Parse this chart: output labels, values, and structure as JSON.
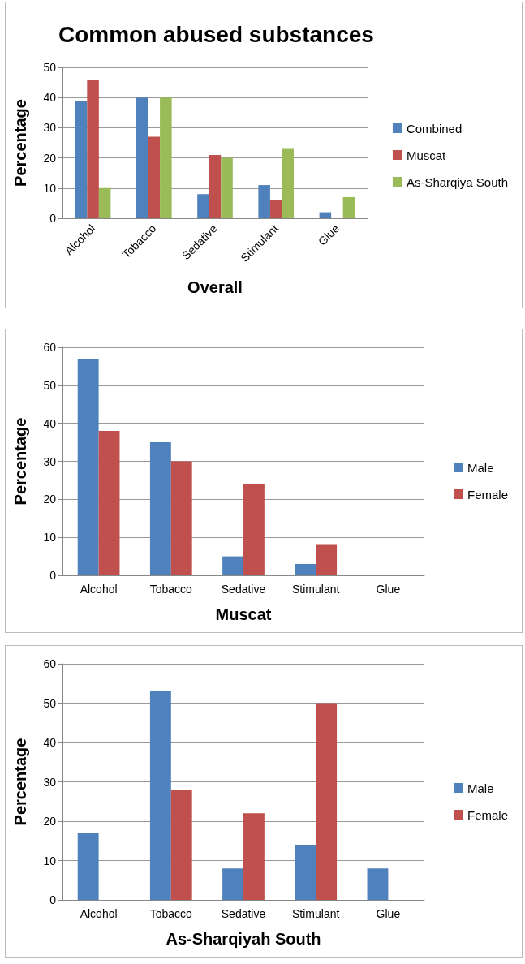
{
  "chart_data": [
    {
      "type": "bar",
      "title": "Common abused substances",
      "xlabel": "Overall",
      "ylabel": "Percentage",
      "categories": [
        "Alcohol",
        "Tobacco",
        "Sedative",
        "Stimulant",
        "Glue"
      ],
      "series": [
        {
          "name": "Combined",
          "color": "#4f81bd",
          "values": [
            39,
            40,
            8,
            11,
            2
          ]
        },
        {
          "name": "Muscat",
          "color": "#c0504d",
          "values": [
            46,
            27,
            21,
            6,
            0
          ]
        },
        {
          "name": "As-Sharqiya South",
          "color": "#9bbb59",
          "values": [
            10,
            40,
            20,
            23,
            7
          ]
        }
      ],
      "ylim": [
        0,
        50
      ],
      "yticks": [
        0,
        10,
        20,
        30,
        40,
        50
      ],
      "grid": "y",
      "legend": "right"
    },
    {
      "type": "bar",
      "xlabel": "Muscat",
      "ylabel": "Percentage",
      "categories": [
        "Alcohol",
        "Tobacco",
        "Sedative",
        "Stimulant",
        "Glue"
      ],
      "series": [
        {
          "name": "Male",
          "color": "#4f81bd",
          "values": [
            57,
            35,
            5,
            3,
            0
          ]
        },
        {
          "name": "Female",
          "color": "#c0504d",
          "values": [
            38,
            30,
            24,
            8,
            0
          ]
        }
      ],
      "ylim": [
        0,
        60
      ],
      "yticks": [
        0,
        10,
        20,
        30,
        40,
        50,
        60
      ],
      "grid": "y",
      "legend": "right"
    },
    {
      "type": "bar",
      "xlabel": "As-Sharqiyah South",
      "ylabel": "Percentage",
      "categories": [
        "Alcohol",
        "Tobacco",
        "Sedative",
        "Stimulant",
        "Glue"
      ],
      "series": [
        {
          "name": "Male",
          "color": "#4f81bd",
          "values": [
            17,
            53,
            8,
            14,
            8
          ]
        },
        {
          "name": "Female",
          "color": "#c0504d",
          "values": [
            0,
            28,
            22,
            50,
            0
          ]
        }
      ],
      "ylim": [
        0,
        60
      ],
      "yticks": [
        0,
        10,
        20,
        30,
        40,
        50,
        60
      ],
      "grid": "y",
      "legend": "right"
    }
  ]
}
